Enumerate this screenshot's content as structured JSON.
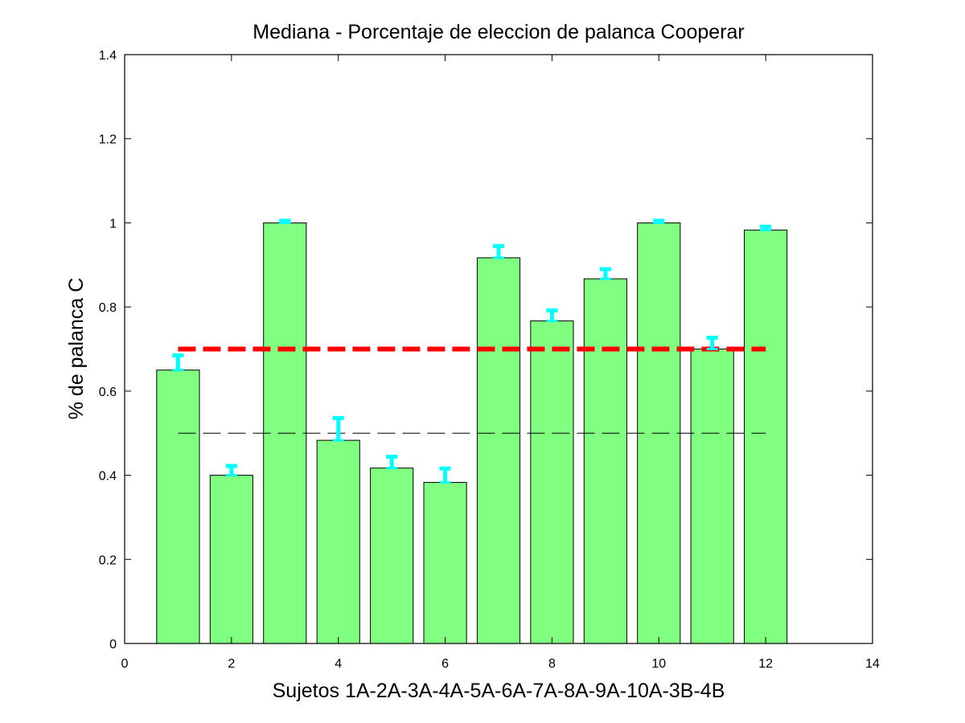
{
  "chart_data": {
    "type": "bar",
    "title": "Mediana - Porcentaje de eleccion de palanca Cooperar",
    "xlabel": "Sujetos 1A-2A-3A-4A-5A-6A-7A-8A-9A-10A-3B-4B",
    "ylabel": "% de palanca C",
    "xlim": [
      0,
      14
    ],
    "ylim": [
      0,
      1.4
    ],
    "xticks": [
      0,
      2,
      4,
      6,
      8,
      10,
      12,
      14
    ],
    "xtick_labels": [
      "0",
      "2",
      "4",
      "6",
      "8",
      "10",
      "12",
      "14"
    ],
    "yticks": [
      0,
      0.2,
      0.4,
      0.6,
      0.8,
      1,
      1.2,
      1.4
    ],
    "ytick_labels": [
      "0",
      "0.2",
      "0.4",
      "0.6",
      "0.8",
      "1",
      "1.2",
      "1.4"
    ],
    "bars": {
      "x": [
        1,
        2,
        3,
        4,
        5,
        6,
        7,
        8,
        9,
        10,
        11,
        12
      ],
      "values": [
        0.65,
        0.4,
        1.0,
        0.483,
        0.417,
        0.383,
        0.917,
        0.767,
        0.867,
        1.0,
        0.7,
        0.983
      ],
      "error_upper": [
        0.035,
        0.022,
        0.005,
        0.053,
        0.027,
        0.033,
        0.028,
        0.025,
        0.023,
        0.005,
        0.027,
        0.008
      ],
      "color": "#80ff80",
      "edge_color": "#000000",
      "error_color": "#00ffff"
    },
    "reference_lines": [
      {
        "y": 0.7,
        "x_range": [
          1,
          12
        ],
        "color": "#ff0000",
        "style": "dashed-thick"
      },
      {
        "y": 0.5,
        "x_range": [
          1,
          12
        ],
        "color": "#000000",
        "style": "dashed-thin"
      }
    ],
    "grid": false,
    "legend": "none"
  }
}
